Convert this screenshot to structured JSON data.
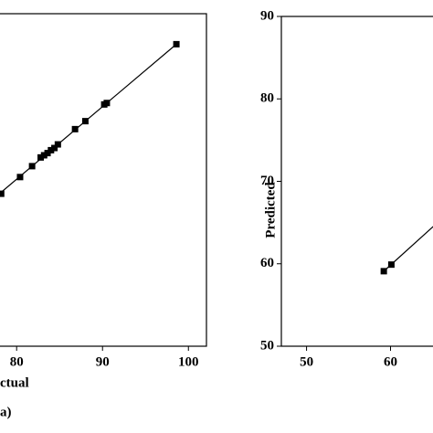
{
  "chart_data": [
    {
      "type": "scatter",
      "x_label": "ctual",
      "panel_label": "a)",
      "xlim": [
        77,
        102.1
      ],
      "ylim": [
        57,
        102.8
      ],
      "xticks": [
        80,
        90,
        100
      ],
      "x": [
        78.2,
        80.4,
        81.8,
        82.8,
        83.2,
        83.6,
        84.0,
        84.4,
        84.8,
        86.8,
        88.0,
        90.2,
        90.5,
        98.6
      ],
      "y": [
        78.0,
        80.3,
        81.8,
        83.0,
        83.3,
        83.6,
        84.0,
        84.3,
        84.8,
        86.9,
        88.0,
        90.3,
        90.5,
        98.6
      ],
      "fit_x": [
        77.5,
        98.6
      ],
      "fit_y": [
        77.5,
        98.6
      ],
      "color": "#000000"
    },
    {
      "type": "scatter",
      "y_label": "Predicted",
      "xlim": [
        47,
        66.8
      ],
      "ylim": [
        50,
        90
      ],
      "xticks": [
        50,
        60
      ],
      "yticks": [
        50,
        60,
        70,
        80,
        90
      ],
      "x": [
        59.2,
        60.1
      ],
      "y": [
        59.1,
        59.9
      ],
      "fit_x": [
        59.2,
        66.8
      ],
      "fit_y": [
        59.1,
        66.1
      ],
      "color": "#000000"
    }
  ]
}
